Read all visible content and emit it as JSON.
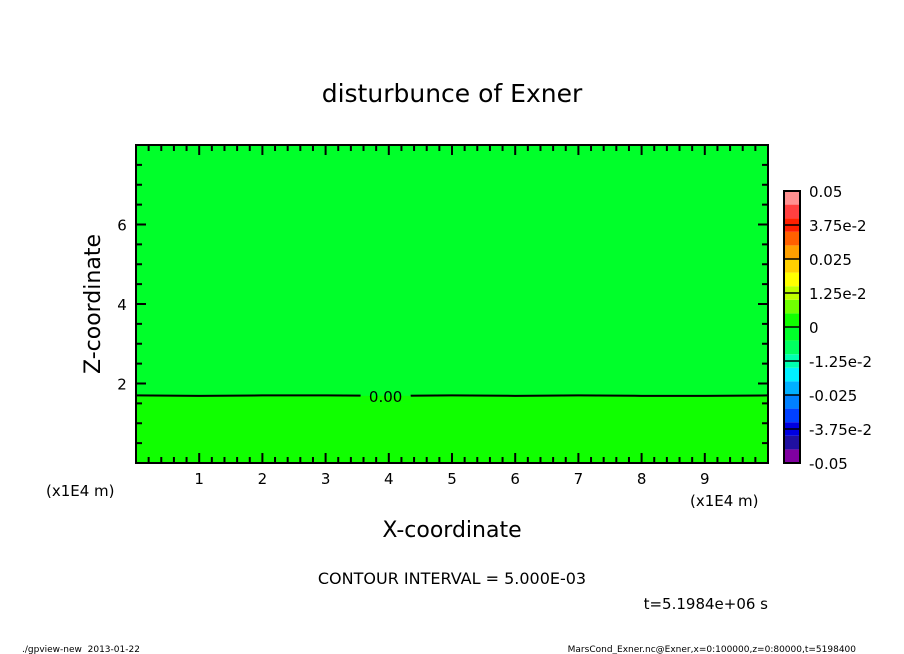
{
  "chart_data": {
    "type": "heatmap",
    "title": "disturbunce of Exner",
    "xlabel": "X-coordinate",
    "ylabel": "Z-coordinate",
    "x_unit": "(x1E4 m)",
    "x_unit_right": "(x1E4 m)",
    "xlim": [
      0,
      10
    ],
    "ylim": [
      0,
      8
    ],
    "x_ticks": [
      1,
      2,
      3,
      4,
      5,
      6,
      7,
      8,
      9
    ],
    "y_ticks": [
      2,
      4,
      6
    ],
    "grid": false,
    "regions": [
      {
        "z_from": 1.7,
        "z_to": 8,
        "level_range": [
          -0.005,
          0
        ],
        "color": "#00ff2a"
      },
      {
        "z_from": 0,
        "z_to": 1.7,
        "level_range": [
          0,
          0.005
        ],
        "color": "#10ff00"
      }
    ],
    "contour": {
      "level": 0,
      "label": "0.00",
      "z": [
        1.7,
        1.69,
        1.7,
        1.7,
        1.69,
        1.7,
        1.69,
        1.7,
        1.69,
        1.69,
        1.7
      ],
      "x": [
        0,
        1,
        2,
        3,
        4,
        5,
        6,
        7,
        8,
        9,
        10
      ]
    },
    "colorbar": {
      "min": -0.05,
      "max": 0.05,
      "step": 0.005,
      "labels": [
        "0.05",
        "3.75e-2",
        "0.025",
        "1.25e-2",
        "0",
        "-1.25e-2",
        "-0.025",
        "-3.75e-2",
        "-0.05"
      ],
      "label_values": [
        0.05,
        0.0375,
        0.025,
        0.0125,
        0,
        -0.0125,
        -0.025,
        -0.0375,
        -0.05
      ],
      "colors_bottom_to_top": [
        "#8000a0",
        "#2010a0",
        "#0000e0",
        "#0040ff",
        "#0080ff",
        "#00b0ff",
        "#00f0ff",
        "#00ffb0",
        "#00ff60",
        "#00ff2a",
        "#10ff00",
        "#70ff00",
        "#c0ff00",
        "#ffff00",
        "#ffd000",
        "#ffa000",
        "#ff6000",
        "#ff2000",
        "#ff4040",
        "#ff9090"
      ]
    },
    "annotations": {
      "contour_interval": "CONTOUR INTERVAL = 5.000E-03",
      "time": "t=5.1984e+06 s",
      "footer_left": "./gpview-new  2013-01-22",
      "footer_right": "MarsCond_Exner.nc@Exner,x=0:100000,z=0:80000,t=5198400"
    }
  }
}
